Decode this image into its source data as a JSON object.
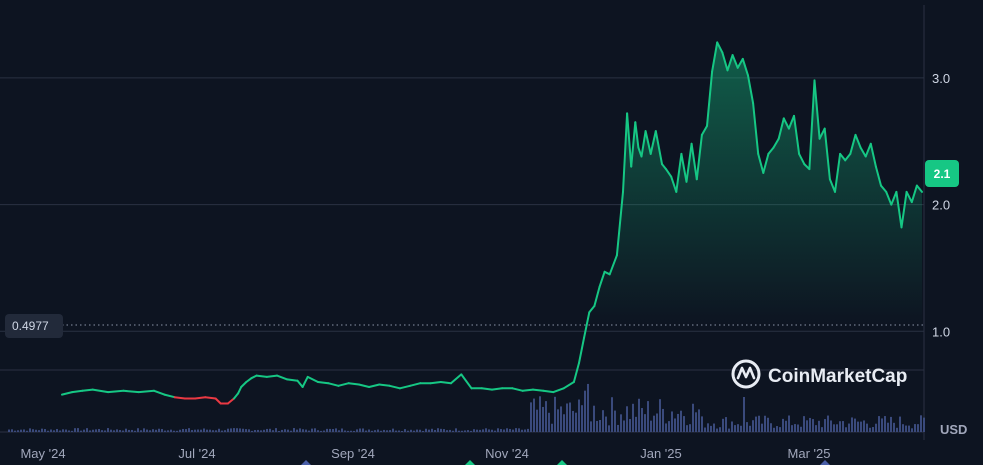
{
  "chart_data": {
    "type": "area",
    "y_ticks": [
      "3.0",
      "2.0",
      "1.0"
    ],
    "y_tick_values": [
      3.0,
      2.0,
      1.0
    ],
    "x_ticks": [
      "May '24",
      "Jul '24",
      "Sep '24",
      "Nov '24",
      "Jan '25",
      "Mar '25"
    ],
    "ylim": [
      0,
      4.0
    ],
    "currency_label": "USD",
    "current_price_label": "2.1",
    "current_price": 2.1,
    "start_price_label": "0.4977",
    "start_price": 0.4977,
    "grid": "horizontal",
    "colors": {
      "up": "#16c784",
      "down": "#ea3943",
      "badge": "#16c784",
      "volume": "#3a4a7c",
      "background": "#0d1421",
      "grid": "#2a3142"
    },
    "series": [
      {
        "points": [
          [
            "May '24",
            0.5
          ],
          [
            0.1,
            0.52
          ],
          [
            0.2,
            0.53
          ],
          [
            0.3,
            0.54
          ],
          [
            0.45,
            0.52
          ],
          [
            0.6,
            0.53
          ],
          [
            0.75,
            0.52
          ],
          [
            0.9,
            0.53
          ],
          [
            1.0,
            0.5
          ],
          [
            1.1,
            0.48
          ],
          [
            1.2,
            0.47
          ],
          [
            1.3,
            0.47
          ],
          [
            1.4,
            0.48
          ],
          [
            1.5,
            0.47
          ],
          [
            1.55,
            0.43
          ],
          [
            1.62,
            0.43
          ],
          [
            1.68,
            0.47
          ],
          [
            1.72,
            0.51
          ],
          [
            1.75,
            0.56
          ],
          [
            1.8,
            0.6
          ],
          [
            1.85,
            0.63
          ],
          [
            1.9,
            0.65
          ],
          [
            2.0,
            0.64
          ],
          [
            2.1,
            0.65
          ],
          [
            2.2,
            0.62
          ],
          [
            2.3,
            0.61
          ],
          [
            2.35,
            0.56
          ],
          [
            2.4,
            0.64
          ],
          [
            2.5,
            0.6
          ],
          [
            2.6,
            0.59
          ],
          [
            2.7,
            0.57
          ],
          [
            2.8,
            0.59
          ],
          [
            2.9,
            0.58
          ],
          [
            3.0,
            0.56
          ],
          [
            3.1,
            0.58
          ],
          [
            3.2,
            0.57
          ],
          [
            3.3,
            0.55
          ],
          [
            3.4,
            0.57
          ],
          [
            3.5,
            0.59
          ],
          [
            3.6,
            0.59
          ],
          [
            3.7,
            0.6
          ],
          [
            3.8,
            0.59
          ],
          [
            3.9,
            0.66
          ],
          [
            4.0,
            0.55
          ],
          [
            4.1,
            0.55
          ],
          [
            4.2,
            0.54
          ],
          [
            4.3,
            0.55
          ],
          [
            4.4,
            0.55
          ],
          [
            4.5,
            0.53
          ],
          [
            4.6,
            0.54
          ],
          [
            4.7,
            0.53
          ],
          [
            4.8,
            0.52
          ],
          [
            4.9,
            0.55
          ],
          [
            5.0,
            0.6
          ],
          [
            5.05,
            0.75
          ],
          [
            5.1,
            0.95
          ],
          [
            5.15,
            1.15
          ],
          [
            5.2,
            1.2
          ],
          [
            5.25,
            1.35
          ],
          [
            5.3,
            1.47
          ],
          [
            5.35,
            1.45
          ],
          [
            5.42,
            1.6
          ],
          [
            5.48,
            2.1
          ],
          [
            5.52,
            2.72
          ],
          [
            5.56,
            2.3
          ],
          [
            5.6,
            2.65
          ],
          [
            5.63,
            2.45
          ],
          [
            5.66,
            2.38
          ],
          [
            5.7,
            2.58
          ],
          [
            5.75,
            2.4
          ],
          [
            5.8,
            2.58
          ],
          [
            5.86,
            2.32
          ],
          [
            5.9,
            2.28
          ],
          [
            5.95,
            2.22
          ],
          [
            6.0,
            2.1
          ],
          [
            6.05,
            2.4
          ],
          [
            6.1,
            2.18
          ],
          [
            6.15,
            2.48
          ],
          [
            6.2,
            2.2
          ],
          [
            6.25,
            2.55
          ],
          [
            6.3,
            2.62
          ],
          [
            6.35,
            3.05
          ],
          [
            6.4,
            3.28
          ],
          [
            6.45,
            3.2
          ],
          [
            6.5,
            3.06
          ],
          [
            6.55,
            3.18
          ],
          [
            6.6,
            3.08
          ],
          [
            6.65,
            3.15
          ],
          [
            6.7,
            3.02
          ],
          [
            6.75,
            2.8
          ],
          [
            6.8,
            2.4
          ],
          [
            6.85,
            2.25
          ],
          [
            6.9,
            2.4
          ],
          [
            6.95,
            2.45
          ],
          [
            7.0,
            2.52
          ],
          [
            7.05,
            2.68
          ],
          [
            7.1,
            2.6
          ],
          [
            7.15,
            2.7
          ],
          [
            7.2,
            2.4
          ],
          [
            7.25,
            2.32
          ],
          [
            7.3,
            2.28
          ],
          [
            7.35,
            2.98
          ],
          [
            7.4,
            2.52
          ],
          [
            7.45,
            2.6
          ],
          [
            7.5,
            2.2
          ],
          [
            7.55,
            2.1
          ],
          [
            7.6,
            2.4
          ],
          [
            7.65,
            2.35
          ],
          [
            7.7,
            2.4
          ],
          [
            7.75,
            2.55
          ],
          [
            7.8,
            2.45
          ],
          [
            7.85,
            2.38
          ],
          [
            7.9,
            2.48
          ],
          [
            7.95,
            2.3
          ],
          [
            8.0,
            2.15
          ],
          [
            8.05,
            2.1
          ],
          [
            8.1,
            2.0
          ],
          [
            8.15,
            2.1
          ],
          [
            8.2,
            1.82
          ],
          [
            8.25,
            2.1
          ],
          [
            8.3,
            2.02
          ],
          [
            8.35,
            2.15
          ],
          [
            8.4,
            2.1
          ]
        ]
      }
    ]
  },
  "watermark": {
    "brand": "CoinMarketCap",
    "icon": "coinmarketcap-logo-icon"
  }
}
